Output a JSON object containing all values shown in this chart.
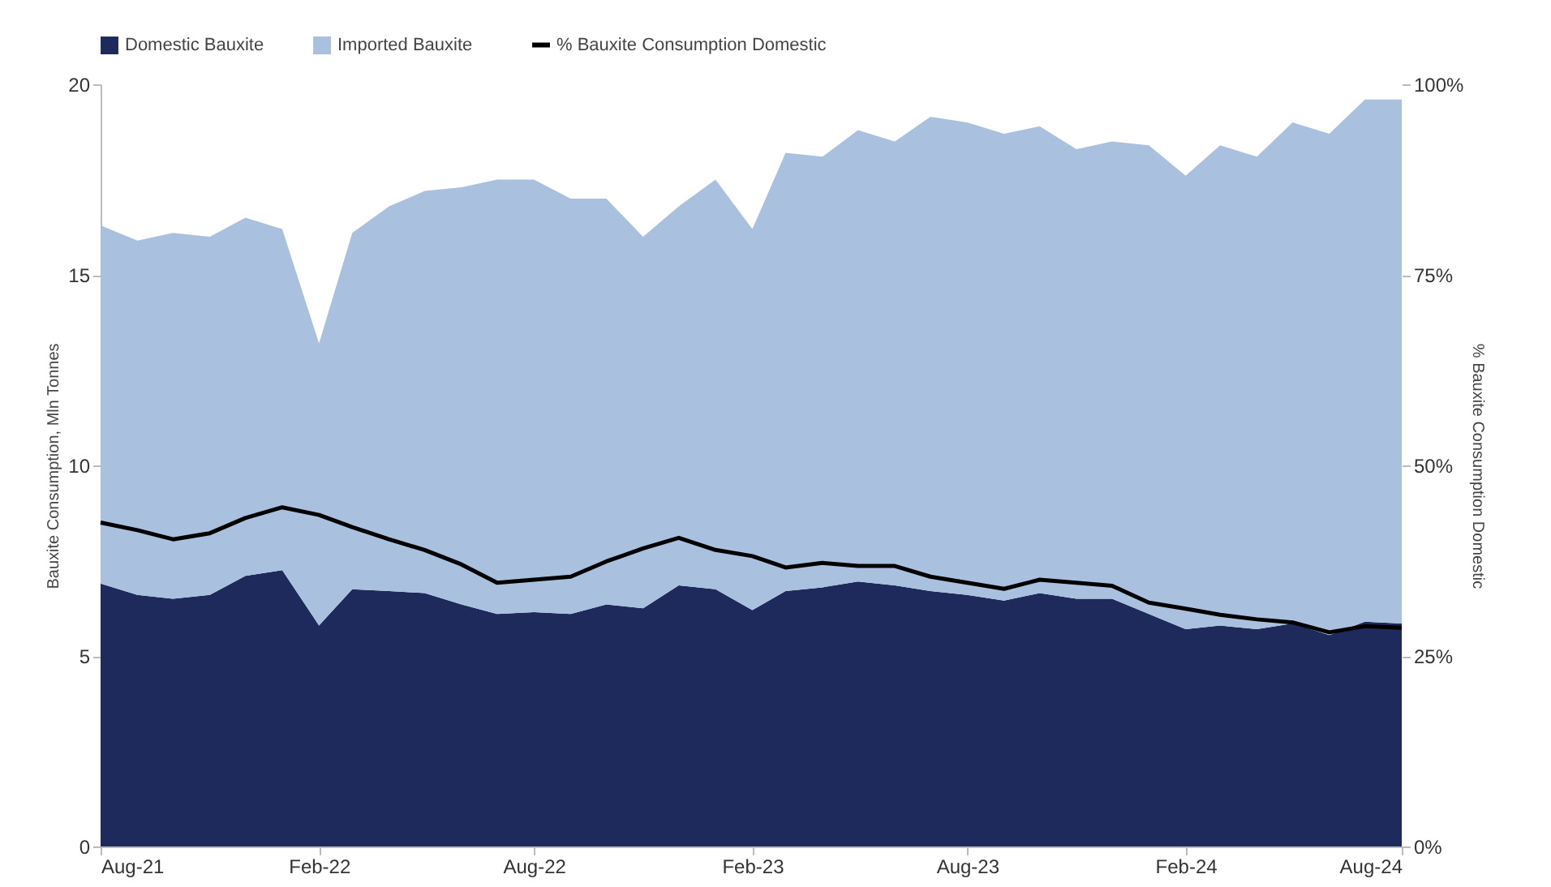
{
  "chart_data": {
    "type": "area",
    "stacked": true,
    "ylabel": "Bauxite Consumption, Mln Tonnes",
    "y2label": "% Bauxite Consumption Domestic",
    "x": [
      "2021-08",
      "2021-09",
      "2021-10",
      "2021-11",
      "2021-12",
      "2022-01",
      "2022-02",
      "2022-03",
      "2022-04",
      "2022-05",
      "2022-06",
      "2022-07",
      "2022-08",
      "2022-09",
      "2022-10",
      "2022-11",
      "2022-12",
      "2023-01",
      "2023-02",
      "2023-03",
      "2023-04",
      "2023-05",
      "2023-06",
      "2023-07",
      "2023-08",
      "2023-09",
      "2023-10",
      "2023-11",
      "2023-12",
      "2024-01",
      "2024-02",
      "2024-03",
      "2024-04",
      "2024-05",
      "2024-06",
      "2024-07",
      "2024-08"
    ],
    "xlim": [
      "2021-08",
      "2024-08"
    ],
    "xticks": [
      {
        "value": "2021-08",
        "label": "Aug-21"
      },
      {
        "value": "2022-02",
        "label": "Feb-22"
      },
      {
        "value": "2022-08",
        "label": "Aug-22"
      },
      {
        "value": "2023-02",
        "label": "Feb-23"
      },
      {
        "value": "2023-08",
        "label": "Aug-23"
      },
      {
        "value": "2024-02",
        "label": "Feb-24"
      },
      {
        "value": "2024-08",
        "label": "Aug-24"
      }
    ],
    "series": [
      {
        "name": "Domestic Bauxite",
        "type": "area",
        "color": "#1f2a5c",
        "values": [
          6.9,
          6.6,
          6.5,
          6.6,
          7.1,
          7.25,
          5.8,
          6.75,
          6.7,
          6.65,
          6.35,
          6.1,
          6.15,
          6.1,
          6.35,
          6.25,
          6.85,
          6.75,
          6.2,
          6.7,
          6.8,
          6.95,
          6.85,
          6.7,
          6.6,
          6.45,
          6.65,
          6.5,
          6.5,
          6.1,
          5.7,
          5.8,
          5.7,
          5.85,
          5.55,
          5.9,
          5.85
        ]
      },
      {
        "name": "Imported Bauxite",
        "type": "area",
        "color": "#a9c0de",
        "values": [
          9.4,
          9.3,
          9.6,
          9.4,
          9.4,
          8.95,
          7.4,
          9.35,
          10.1,
          10.55,
          10.95,
          11.4,
          11.35,
          10.9,
          10.65,
          9.75,
          9.95,
          10.75,
          10.0,
          11.5,
          11.3,
          11.85,
          11.65,
          12.45,
          12.4,
          12.25,
          12.25,
          11.8,
          12.0,
          12.3,
          11.9,
          12.6,
          12.4,
          13.15,
          13.15,
          13.7,
          13.75
        ]
      },
      {
        "name": "% Bauxite Consumption Domestic",
        "type": "line",
        "axis": "y2",
        "color": "#000000",
        "values": [
          42.5,
          41.5,
          40.3,
          41.1,
          43.1,
          44.5,
          43.5,
          41.9,
          40.3,
          38.9,
          37,
          34.6,
          35,
          35.4,
          37.4,
          39.1,
          40.5,
          38.9,
          38.1,
          36.6,
          37.2,
          36.8,
          36.8,
          35.4,
          34.6,
          33.8,
          35,
          34.6,
          34.2,
          32,
          31.2,
          30.4,
          29.8,
          29.4,
          28.1,
          28.9,
          28.7
        ]
      }
    ],
    "ylim": [
      0,
      20
    ],
    "yticks": [
      0,
      5,
      10,
      15,
      20
    ],
    "y2lim": [
      0,
      100
    ],
    "y2ticks": [
      {
        "value": 0,
        "label": "0%"
      },
      {
        "value": 25,
        "label": "25%"
      },
      {
        "value": 50,
        "label": "50%"
      },
      {
        "value": 75,
        "label": "75%"
      },
      {
        "value": 100,
        "label": "100%"
      }
    ],
    "legend": "top",
    "grid": false
  }
}
